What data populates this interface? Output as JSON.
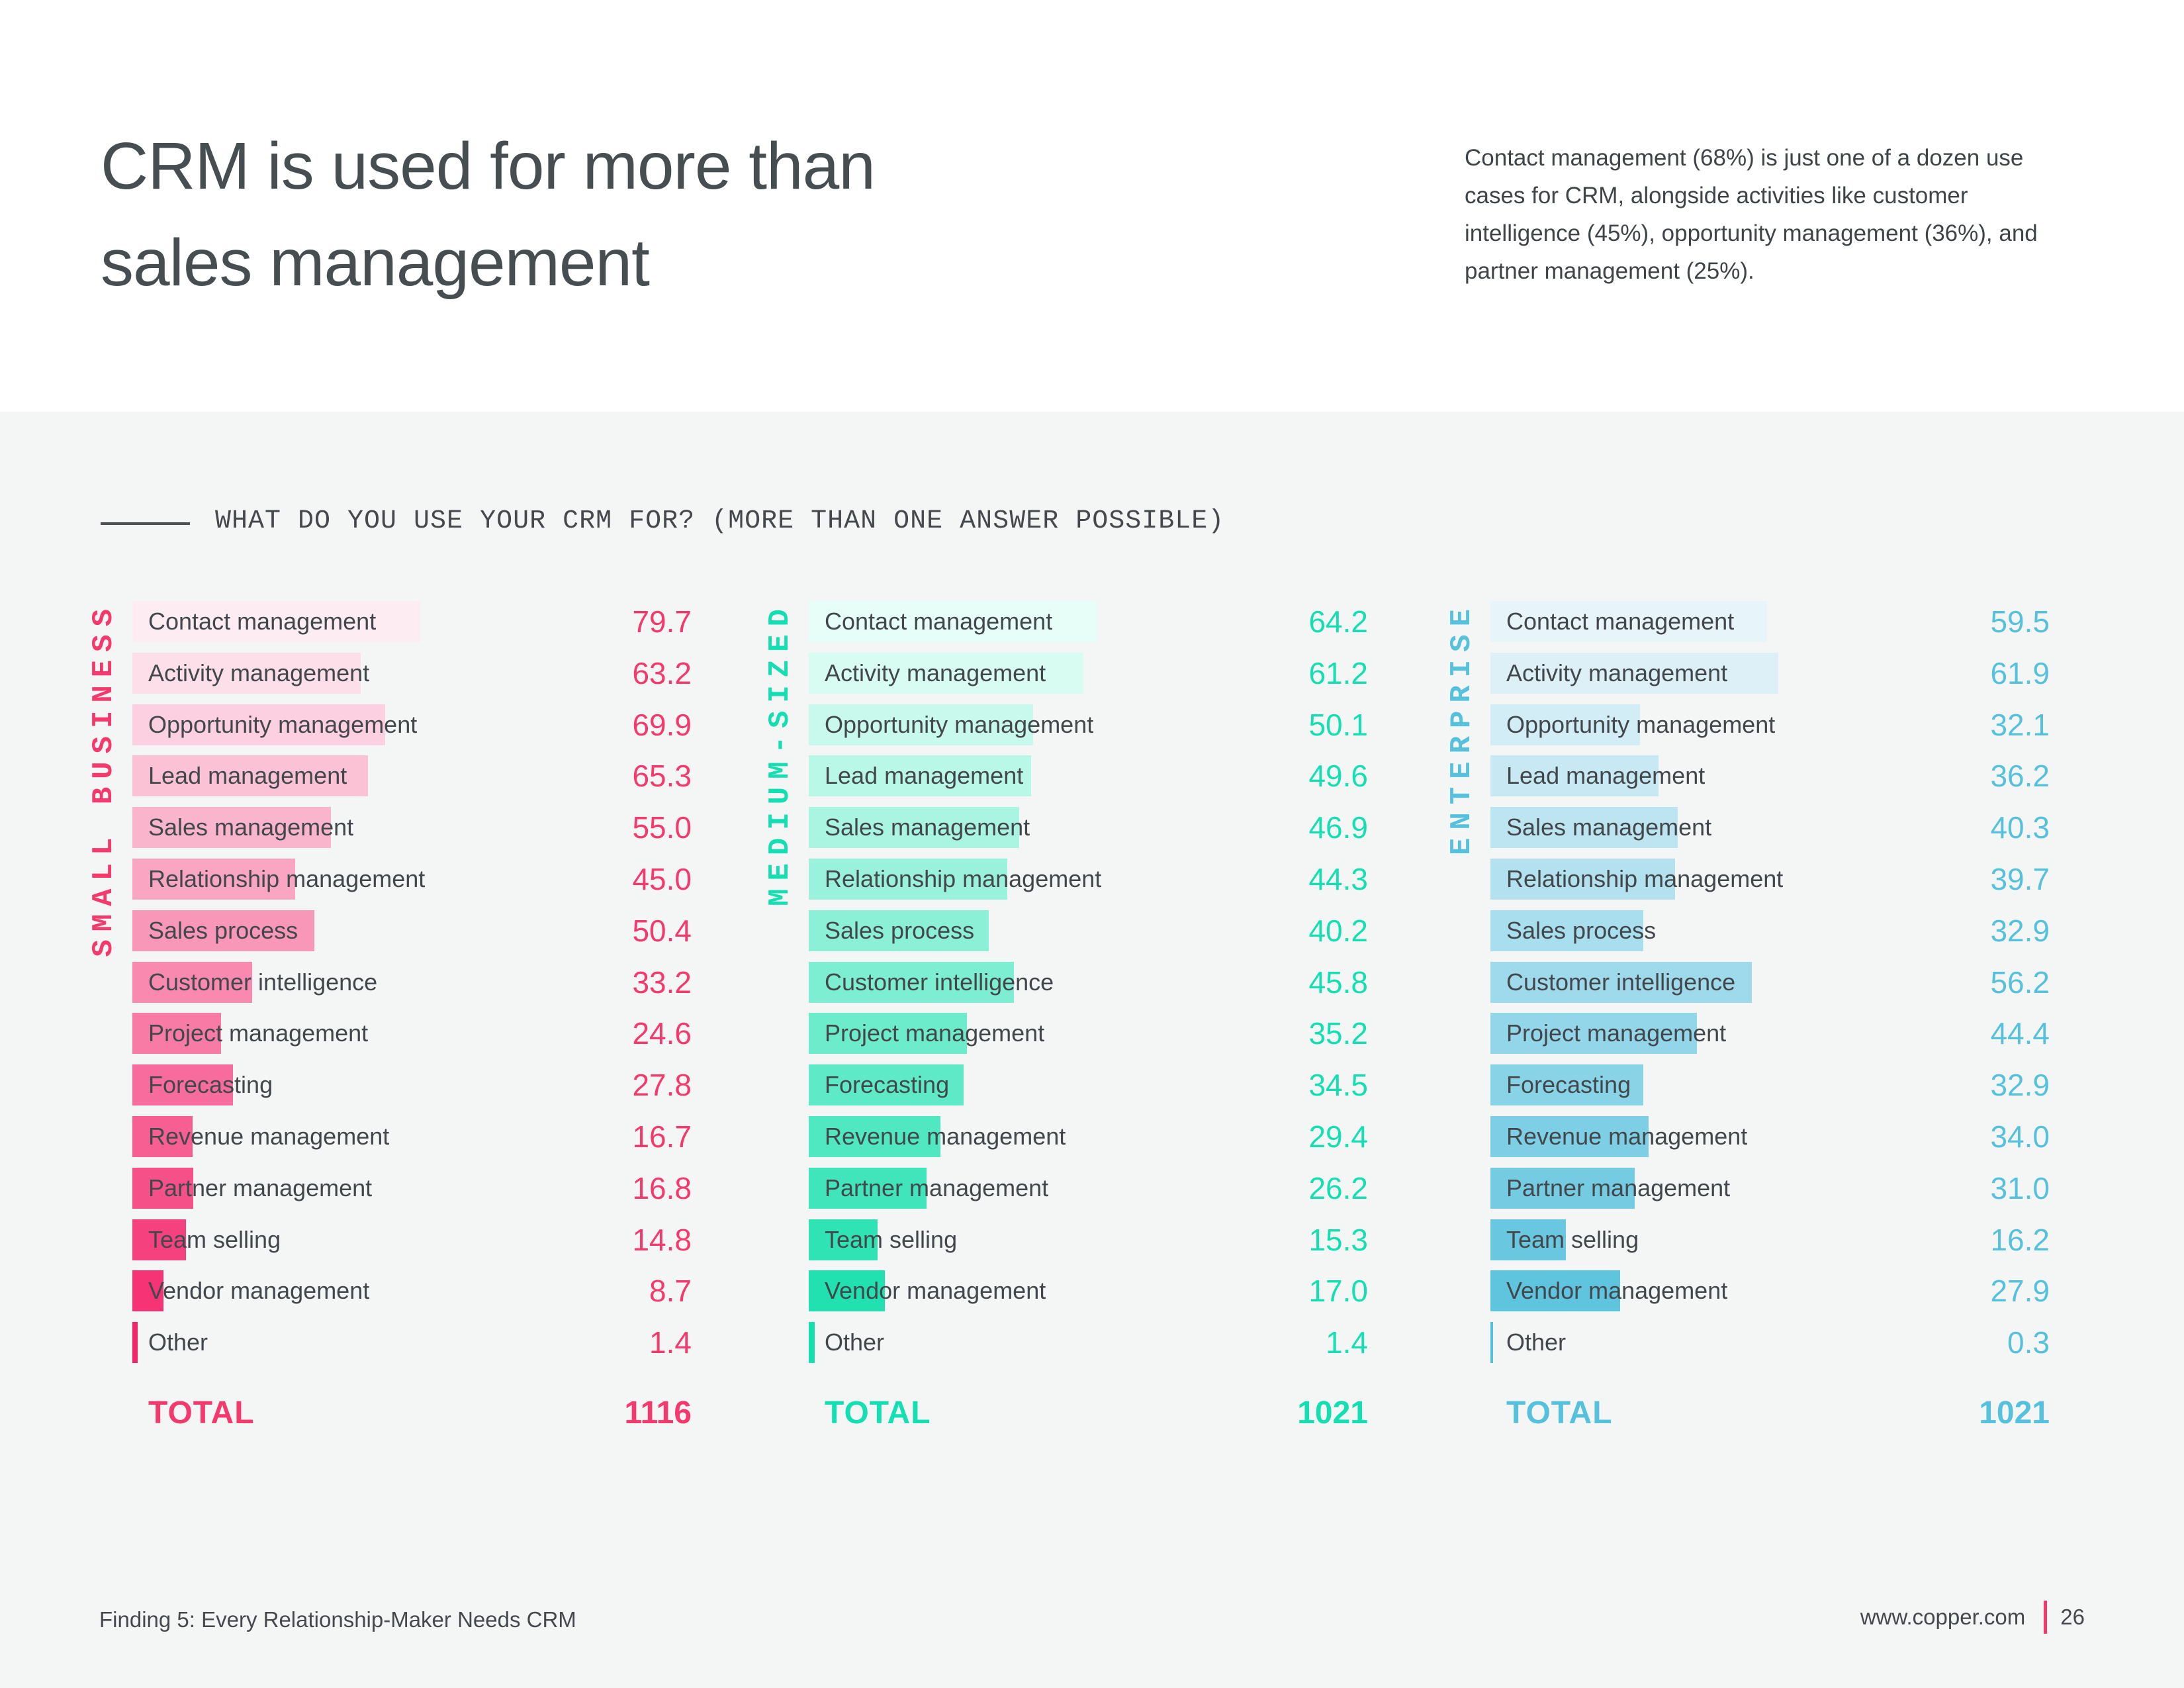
{
  "page": {
    "title_line1": "CRM is used for more than",
    "title_line2": "sales management",
    "intro": "Contact management (68%) is just one of a dozen use cases for CRM, alongside activities like customer intelligence (45%), opportunity management (36%), and partner management (25%).",
    "footer_left": "Finding 5:  Every Relationship-Maker Needs CRM",
    "footer_site": "www.copper.com",
    "footer_page": "26"
  },
  "chart_data": {
    "type": "bar",
    "orientation": "horizontal",
    "question": "WHAT DO YOU USE YOUR CRM FOR? (MORE THAN ONE ANSWER POSSIBLE)",
    "total_label": "TOTAL",
    "categories": [
      "Contact management",
      "Activity management",
      "Opportunity management",
      "Lead management",
      "Sales management",
      "Relationship management",
      "Sales process",
      "Customer intelligence",
      "Project management",
      "Forecasting",
      "Revenue management",
      "Partner management",
      "Team selling",
      "Vendor management",
      "Other"
    ],
    "series": [
      {
        "name": "SMALL BUSINESS",
        "accent": "#F43A6C",
        "bar_color_light": "#FDEDF3",
        "bar_color_strong": "#F4256B",
        "values": [
          "79.7",
          "63.2",
          "69.9",
          "65.3",
          "55.0",
          "45.0",
          "50.4",
          "33.2",
          "24.6",
          "27.8",
          "16.7",
          "16.8",
          "14.8",
          "8.7",
          "1.4"
        ],
        "total": "1116"
      },
      {
        "name": "MEDIUM-SIZED",
        "accent": "#14DFB2",
        "bar_color_light": "#E7FDF8",
        "bar_color_strong": "#12DFAA",
        "values": [
          "64.2",
          "61.2",
          "50.1",
          "49.6",
          "46.9",
          "44.3",
          "40.2",
          "45.8",
          "35.2",
          "34.5",
          "29.4",
          "26.2",
          "15.3",
          "17.0",
          "1.4"
        ],
        "total": "1021"
      },
      {
        "name": "ENTERPRISE",
        "accent": "#55C1DD",
        "bar_color_light": "#E7F4FA",
        "bar_color_strong": "#54C0DC",
        "values": [
          "59.5",
          "61.9",
          "32.1",
          "36.2",
          "40.3",
          "39.7",
          "32.9",
          "56.2",
          "44.4",
          "32.9",
          "34.0",
          "31.0",
          "16.2",
          "27.9",
          "0.3"
        ],
        "total": "1021"
      }
    ]
  }
}
